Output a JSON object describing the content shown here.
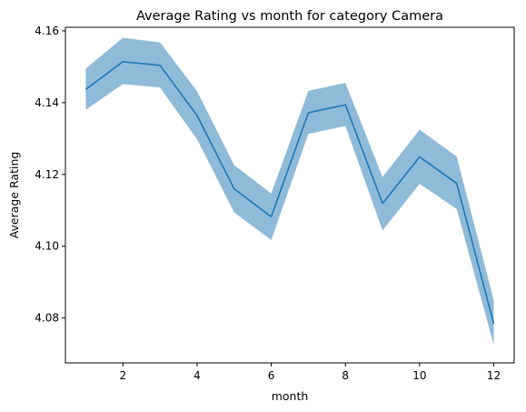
{
  "chart_data": {
    "type": "line",
    "title": "Average Rating vs month for category Camera",
    "xlabel": "month",
    "ylabel": "Average Rating",
    "xlim": [
      0.45,
      12.55
    ],
    "ylim": [
      4.0675,
      4.161
    ],
    "xticks": [
      2,
      4,
      6,
      8,
      10,
      12
    ],
    "yticks": [
      4.08,
      4.1,
      4.12,
      4.14,
      4.16
    ],
    "ytick_labels": [
      "4.08",
      "4.10",
      "4.12",
      "4.14",
      "4.16"
    ],
    "grid": false,
    "legend": "none",
    "line_color": "#1f77b4",
    "band_color": "#1f77b4",
    "series": [
      {
        "x": [
          1,
          2,
          3,
          4,
          5,
          6,
          7,
          8,
          9,
          10,
          11,
          12
        ],
        "values": [
          4.1437,
          4.1514,
          4.1504,
          4.1364,
          4.116,
          4.1082,
          4.1372,
          4.1394,
          4.1119,
          4.1249,
          4.1175,
          4.0784
        ],
        "lower": [
          4.138,
          4.1452,
          4.1442,
          4.1298,
          4.1094,
          4.1017,
          4.1313,
          4.1335,
          4.1044,
          4.1174,
          4.1104,
          4.0724
        ],
        "upper": [
          4.1495,
          4.1581,
          4.1568,
          4.1432,
          4.1226,
          4.1147,
          4.1433,
          4.1455,
          4.1193,
          4.1325,
          4.125,
          4.0849
        ]
      }
    ]
  }
}
